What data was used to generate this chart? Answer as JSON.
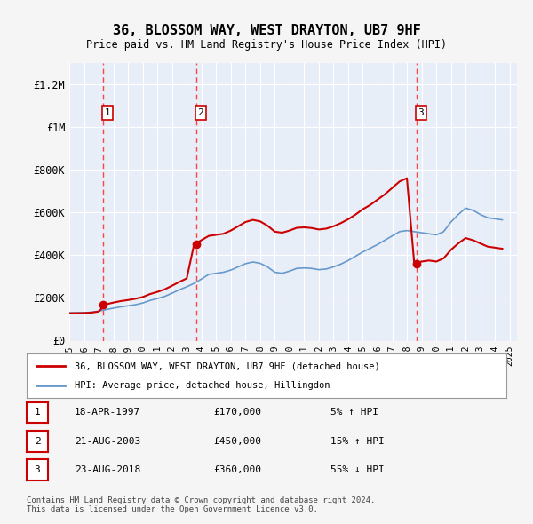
{
  "title": "36, BLOSSOM WAY, WEST DRAYTON, UB7 9HF",
  "subtitle": "Price paid vs. HM Land Registry's House Price Index (HPI)",
  "ylabel": "",
  "ylim": [
    0,
    1300000
  ],
  "yticks": [
    0,
    200000,
    400000,
    600000,
    800000,
    1000000,
    1200000
  ],
  "ytick_labels": [
    "£0",
    "£200K",
    "£400K",
    "£600K",
    "£800K",
    "£1M",
    "£1.2M"
  ],
  "xlim_start": 1995.0,
  "xlim_end": 2025.5,
  "background_color": "#f0f4ff",
  "plot_bg_color": "#e8eef8",
  "grid_color": "#ffffff",
  "sale_dates": [
    1997.3,
    2003.64,
    2018.65
  ],
  "sale_prices": [
    170000,
    450000,
    360000
  ],
  "sale_labels": [
    "1",
    "2",
    "3"
  ],
  "vline_color": "#ff4444",
  "sale_dot_color": "#cc0000",
  "legend_label_red": "36, BLOSSOM WAY, WEST DRAYTON, UB7 9HF (detached house)",
  "legend_label_blue": "HPI: Average price, detached house, Hillingdon",
  "table_data": [
    [
      "1",
      "18-APR-1997",
      "£170,000",
      "5% ↑ HPI"
    ],
    [
      "2",
      "21-AUG-2003",
      "£450,000",
      "15% ↑ HPI"
    ],
    [
      "3",
      "23-AUG-2018",
      "£360,000",
      "55% ↓ HPI"
    ]
  ],
  "footnote": "Contains HM Land Registry data © Crown copyright and database right 2024.\nThis data is licensed under the Open Government Licence v3.0.",
  "hpi_color": "#6699cc",
  "red_line_color": "#cc0000",
  "hpi_years": [
    1995,
    1995.5,
    1996,
    1996.5,
    1997,
    1997.5,
    1998,
    1998.5,
    1999,
    1999.5,
    2000,
    2000.5,
    2001,
    2001.5,
    2002,
    2002.5,
    2003,
    2003.5,
    2004,
    2004.5,
    2005,
    2005.5,
    2006,
    2006.5,
    2007,
    2007.5,
    2008,
    2008.5,
    2009,
    2009.5,
    2010,
    2010.5,
    2011,
    2011.5,
    2012,
    2012.5,
    2013,
    2013.5,
    2014,
    2014.5,
    2015,
    2015.5,
    2016,
    2016.5,
    2017,
    2017.5,
    2018,
    2018.5,
    2019,
    2019.5,
    2020,
    2020.5,
    2021,
    2021.5,
    2022,
    2022.5,
    2023,
    2023.5,
    2024,
    2024.5
  ],
  "hpi_values": [
    130000,
    130500,
    131000,
    133000,
    138000,
    145000,
    152000,
    158000,
    163000,
    168000,
    176000,
    188000,
    197000,
    207000,
    222000,
    238000,
    252000,
    268000,
    288000,
    310000,
    315000,
    320000,
    330000,
    345000,
    360000,
    368000,
    362000,
    345000,
    320000,
    315000,
    325000,
    338000,
    340000,
    338000,
    332000,
    335000,
    345000,
    358000,
    375000,
    395000,
    415000,
    432000,
    450000,
    470000,
    490000,
    510000,
    515000,
    510000,
    505000,
    500000,
    495000,
    510000,
    555000,
    590000,
    620000,
    610000,
    590000,
    575000,
    570000,
    565000
  ],
  "red_years": [
    1995,
    1995.5,
    1996,
    1996.5,
    1997,
    1997.5,
    1998,
    1998.5,
    1999,
    1999.5,
    2000,
    2000.5,
    2001,
    2001.5,
    2002,
    2002.5,
    2003,
    2003.5,
    2004,
    2004.5,
    2005,
    2005.5,
    2006,
    2006.5,
    2007,
    2007.5,
    2008,
    2008.5,
    2009,
    2009.5,
    2010,
    2010.5,
    2011,
    2011.5,
    2012,
    2012.5,
    2013,
    2013.5,
    2014,
    2014.5,
    2015,
    2015.5,
    2016,
    2016.5,
    2017,
    2017.5,
    2018,
    2018.5,
    2019,
    2019.5,
    2020,
    2020.5,
    2021,
    2021.5,
    2022,
    2022.5,
    2023,
    2023.5,
    2024,
    2024.5
  ],
  "red_values": [
    128000,
    128500,
    129000,
    131000,
    136000,
    170000,
    178000,
    185000,
    190000,
    196000,
    204000,
    218000,
    228000,
    240000,
    257000,
    275000,
    291000,
    450000,
    470000,
    490000,
    495000,
    500000,
    515000,
    535000,
    555000,
    565000,
    558000,
    538000,
    510000,
    505000,
    515000,
    528000,
    530000,
    527000,
    520000,
    524000,
    535000,
    550000,
    568000,
    590000,
    615000,
    635000,
    660000,
    685000,
    715000,
    745000,
    760000,
    360000,
    370000,
    375000,
    370000,
    385000,
    425000,
    455000,
    480000,
    470000,
    455000,
    440000,
    435000,
    430000
  ]
}
